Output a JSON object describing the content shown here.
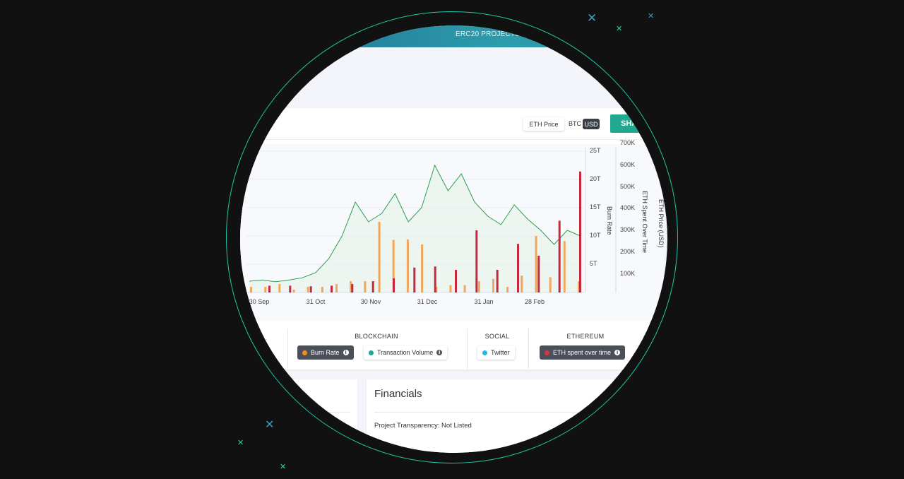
{
  "header": {
    "title": "ERC20 PROJECTS"
  },
  "toolbar": {
    "eth_price_label": "ETH Price",
    "btc_label": "BTC",
    "usd_label": "USD",
    "share_label": "SHA"
  },
  "colors": {
    "accent": "#21a98f",
    "burn_rate": "#f2a65a",
    "eth_spent": "#c8283e",
    "price_line": "#2e9e4f",
    "twitter": "#1fb8e8"
  },
  "chart_data": {
    "type": "bar",
    "title": "",
    "x_ticks": [
      "30 Sep",
      "31 Oct",
      "30 Nov",
      "31 Dec",
      "31 Jan",
      "28 Feb"
    ],
    "y_left": {
      "label": "Burn Rate",
      "ticks": [
        "5T",
        "10T",
        "15T",
        "20T",
        "25T"
      ],
      "range": [
        0,
        25
      ]
    },
    "y_right": {
      "label": "ETH Spent Over Time",
      "ticks": [
        "100K",
        "200K",
        "300K",
        "400K",
        "500K",
        "600K",
        "700K"
      ],
      "range": [
        0,
        700
      ]
    },
    "y_right2": {
      "label": "ETH Price (USD)"
    },
    "series": [
      {
        "name": "Burn Rate",
        "color": "#f2a65a",
        "values": [
          1,
          1,
          1.5,
          0.5,
          1,
          1,
          1.5,
          2,
          2,
          12.5,
          9.3,
          9.4,
          8.5,
          1,
          1.3,
          1.3,
          2,
          2.4,
          1,
          3,
          10,
          2.7,
          9.1,
          2
        ]
      },
      {
        "name": "ETH spent over time",
        "color": "#c8283e",
        "values": [
          1.2,
          1.2,
          1.1,
          1.2,
          1.5,
          2,
          2.5,
          4.4,
          4.6,
          4,
          11,
          4,
          8.6,
          6.5,
          12.7,
          21.4
        ]
      },
      {
        "name": "ETH Price (USD)",
        "color": "#2e9e4f",
        "values": [
          2,
          2.2,
          1.9,
          2.2,
          2.6,
          3.5,
          6,
          10,
          16,
          12.5,
          14,
          17.5,
          12.5,
          15,
          22.5,
          18,
          21,
          16,
          13.5,
          12,
          15.5,
          13,
          11,
          8.5,
          11,
          10
        ]
      }
    ]
  },
  "filters": {
    "groups": [
      {
        "title": "BLOCKCHAIN"
      },
      {
        "title": "SOCIAL"
      },
      {
        "title": "ETHEREUM"
      }
    ],
    "chips": {
      "burn_rate": "Burn Rate",
      "transaction_volume": "Transaction Volume",
      "twitter": "Twitter",
      "eth_spent": "ETH spent over time"
    }
  },
  "financials": {
    "title": "Financials",
    "transparency": "Project Transparency: Not Listed"
  }
}
